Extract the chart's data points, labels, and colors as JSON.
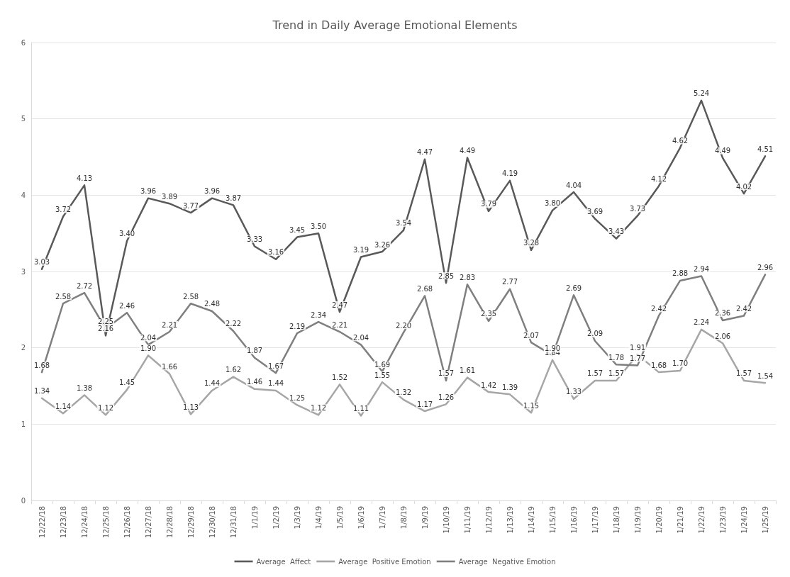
{
  "chart_data": {
    "type": "line",
    "title": "Trend in Daily Average Emotional Elements",
    "categories": [
      "12/22/18",
      "12/23/18",
      "12/24/18",
      "12/25/18",
      "12/26/18",
      "12/27/18",
      "12/28/18",
      "12/29/18",
      "12/30/18",
      "12/31/18",
      "1/1/19",
      "1/2/19",
      "1/3/19",
      "1/4/19",
      "1/5/19",
      "1/6/19",
      "1/7/19",
      "1/8/19",
      "1/9/19",
      "1/10/19",
      "1/11/19",
      "1/12/19",
      "1/13/19",
      "1/14/19",
      "1/15/19",
      "1/16/19",
      "1/17/19",
      "1/18/19",
      "1/19/19",
      "1/20/19",
      "1/21/19",
      "1/22/19",
      "1/23/19",
      "1/24/19",
      "1/25/19"
    ],
    "series": [
      {
        "name": "Average  Affect",
        "color": "#595959",
        "values": [
          3.03,
          3.72,
          4.13,
          2.16,
          3.4,
          3.96,
          3.89,
          3.77,
          3.96,
          3.87,
          3.33,
          3.16,
          3.45,
          3.5,
          2.47,
          3.19,
          3.26,
          3.54,
          4.47,
          2.85,
          4.49,
          3.79,
          4.19,
          3.28,
          3.8,
          4.04,
          3.69,
          3.43,
          3.73,
          4.12,
          4.62,
          5.24,
          4.49,
          4.02,
          4.51
        ],
        "value_labels": [
          "3.03",
          "3.72",
          "4.13",
          "2.16",
          "3.40",
          "3.96",
          "3.89",
          "3.77",
          "3.96",
          "3.87",
          "3.33",
          "3.16",
          "3.45",
          "3.50",
          "2.47",
          "3.19",
          "3.26",
          "3.54",
          "4.47",
          "2.85",
          "4.49",
          "3.79",
          "4.19",
          "3.28",
          "3.80",
          "4.04",
          "3.69",
          "3.43",
          "3.73",
          "4.12",
          "4.62",
          "5.24",
          "4.49",
          "4.02",
          "4.51"
        ]
      },
      {
        "name": "Average  Positive Emotion",
        "color": "#a6a6a6",
        "values": [
          1.34,
          1.14,
          1.38,
          1.12,
          1.45,
          1.9,
          1.66,
          1.13,
          1.44,
          1.62,
          1.46,
          1.44,
          1.25,
          1.12,
          1.52,
          1.11,
          1.55,
          1.32,
          1.17,
          1.26,
          1.61,
          1.42,
          1.39,
          1.15,
          1.84,
          1.33,
          1.57,
          1.57,
          1.91,
          1.68,
          1.7,
          2.24,
          2.06,
          1.57,
          1.54
        ],
        "value_labels": [
          "1.34",
          "1.14",
          "1.38",
          "1.12",
          "1.45",
          "1.90",
          "1.66",
          "1.13",
          "1.44",
          "1.62",
          "1.46",
          "1.44",
          "1.25",
          "1.12",
          "1.52",
          "1.11",
          "1.55",
          "1.32",
          "1.17",
          "1.26",
          "1.61",
          "1.42",
          "1.39",
          "1.15",
          "1.84",
          "1.33",
          "1.57",
          "1.57",
          "1.91",
          "1.68",
          "1.70",
          "2.24",
          "2.06",
          "1.57",
          "1.54"
        ]
      },
      {
        "name": "Average  Negative Emotion",
        "color": "#7f7f7f",
        "values": [
          1.68,
          2.58,
          2.72,
          2.25,
          2.46,
          2.04,
          2.21,
          2.58,
          2.48,
          2.22,
          1.87,
          1.67,
          2.19,
          2.34,
          2.21,
          2.04,
          1.69,
          2.2,
          2.68,
          1.57,
          2.83,
          2.35,
          2.77,
          2.07,
          1.9,
          2.69,
          2.09,
          1.78,
          1.77,
          2.42,
          2.88,
          2.94,
          2.36,
          2.42,
          2.96
        ],
        "value_labels": [
          "1.68",
          "2.58",
          "2.72",
          "2.25",
          "2.46",
          "2.04",
          "2.21",
          "2.58",
          "2.48",
          "2.22",
          "1.87",
          "1.67",
          "2.19",
          "2.34",
          "2.21",
          "2.04",
          "1.69",
          "2.20",
          "2.68",
          "1.57",
          "2.83",
          "2.35",
          "2.77",
          "2.07",
          "1.90",
          "2.69",
          "2.09",
          "1.78",
          "1.77",
          "2.42",
          "2.88",
          "2.94",
          "2.36",
          "2.42",
          "2.96"
        ]
      }
    ],
    "ylim": [
      0,
      6
    ],
    "yticks": [
      0,
      1,
      2,
      3,
      4,
      5,
      6
    ],
    "grid": "y",
    "legend": "bottom",
    "marker": "none",
    "line_style": "solid"
  }
}
